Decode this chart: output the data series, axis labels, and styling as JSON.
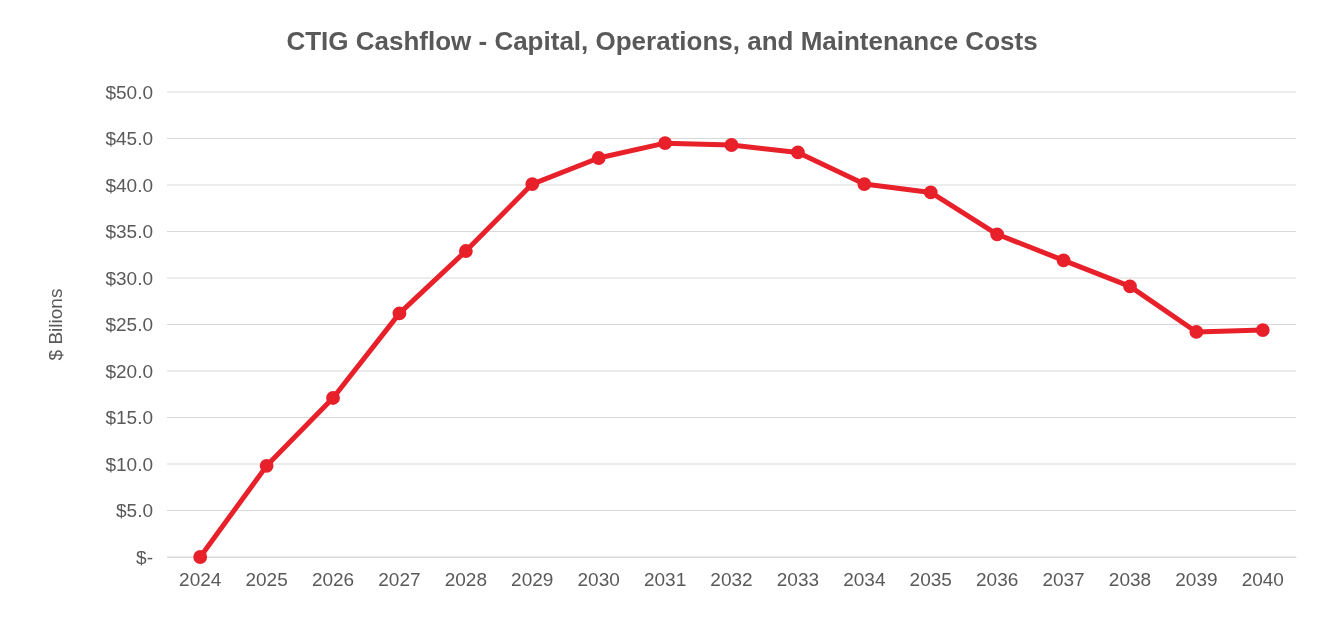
{
  "chart_data": {
    "type": "line",
    "title": "CTIG Cashflow - Capital, Operations, and Maintenance Costs",
    "ylabel": "$ Bilions",
    "categories": [
      "2024",
      "2025",
      "2026",
      "2027",
      "2028",
      "2029",
      "2030",
      "2031",
      "2032",
      "2033",
      "2034",
      "2035",
      "2036",
      "2037",
      "2038",
      "2039",
      "2040"
    ],
    "series": [
      {
        "color": "#e8202a",
        "values": [
          0,
          9.8,
          17.1,
          26.2,
          32.9,
          40.1,
          42.9,
          44.5,
          44.3,
          43.5,
          40.1,
          39.2,
          34.7,
          31.9,
          29.1,
          24.2,
          24.4
        ]
      }
    ],
    "ylim": [
      0,
      50
    ],
    "yticks": [
      {
        "value": 0,
        "label": "$-"
      },
      {
        "value": 5,
        "label": "$5.0"
      },
      {
        "value": 10,
        "label": "$10.0"
      },
      {
        "value": 15,
        "label": "$15.0"
      },
      {
        "value": 20,
        "label": "$20.0"
      },
      {
        "value": 25,
        "label": "$25.0"
      },
      {
        "value": 30,
        "label": "$30.0"
      },
      {
        "value": 35,
        "label": "$35.0"
      },
      {
        "value": 40,
        "label": "$40.0"
      },
      {
        "value": 45,
        "label": "$45.0"
      },
      {
        "value": 50,
        "label": "$50.0"
      }
    ],
    "grid": "y",
    "marker": "circle",
    "line_style": "solid"
  }
}
